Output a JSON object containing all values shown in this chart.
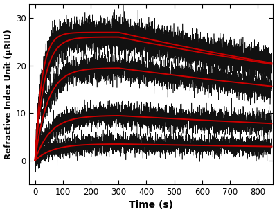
{
  "title": "",
  "xlabel": "Time (s)",
  "ylabel": "Refractive Index Unit (μRIU)",
  "xlim": [
    -20,
    855
  ],
  "ylim": [
    -5,
    33
  ],
  "xticks": [
    0,
    100,
    200,
    300,
    400,
    500,
    600,
    700,
    800
  ],
  "yticks": [
    0,
    10,
    20,
    30
  ],
  "fig_width": 4.0,
  "fig_height": 3.09,
  "dpi": 100,
  "plateau_values": [
    27.0,
    26.0,
    19.5,
    9.5,
    3.5
  ],
  "assoc_rate": [
    0.04,
    0.03,
    0.022,
    0.018,
    0.016
  ],
  "noise_amplitude": [
    1.6,
    1.6,
    1.4,
    1.3,
    1.0
  ],
  "dissoc_start": 300,
  "dissoc_rate": [
    0.0005,
    0.00045,
    0.0004,
    0.00035,
    0.0003
  ],
  "t_end": 850,
  "noise_seed": 7,
  "noise_points": 4250,
  "red_color": "#cc0000",
  "black_color": "#111111",
  "bg_color": "#ffffff",
  "red_lw": 1.4,
  "black_lw": 0.45,
  "black_alpha": 1.0
}
